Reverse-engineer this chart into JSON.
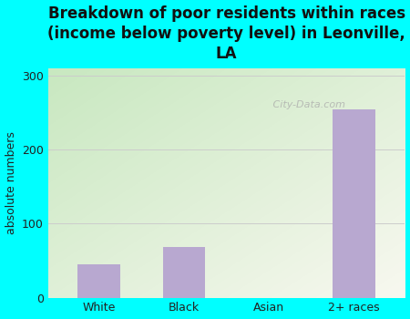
{
  "categories": [
    "White",
    "Black",
    "Asian",
    "2+ races"
  ],
  "values": [
    45,
    68,
    0,
    255
  ],
  "bar_color": "#b8a8d0",
  "title": "Breakdown of poor residents within races\n(income below poverty level) in Leonville,\nLA",
  "ylabel": "absolute numbers",
  "ylim": [
    0,
    310
  ],
  "yticks": [
    0,
    100,
    200,
    300
  ],
  "background_color": "#00ffff",
  "plot_bg_topleft": "#c8e8c0",
  "plot_bg_bottomright": "#f8f8f0",
  "grid_color": "#cccccc",
  "title_fontsize": 12,
  "ylabel_fontsize": 9,
  "tick_fontsize": 9,
  "watermark": " City-Data.com"
}
